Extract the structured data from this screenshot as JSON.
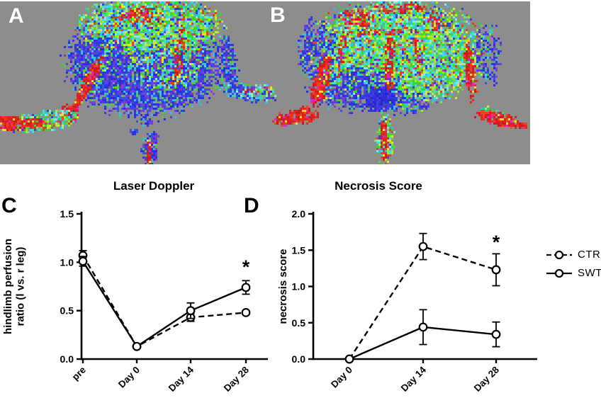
{
  "panels": {
    "a": "A",
    "b": "B",
    "c": "C",
    "d": "D"
  },
  "legend": {
    "position": "right of panel D",
    "items": [
      {
        "label": "CTR",
        "line": "dashed",
        "marker": "open-circle"
      },
      {
        "label": "SWT",
        "line": "solid",
        "marker": "open-circle"
      }
    ]
  },
  "chart_data": [
    {
      "panel": "C",
      "type": "line",
      "title": "Laser Doppler",
      "ylabel": "hindlimb perfusion ratio (l vs. r leg)",
      "ylabel_lines": [
        "hindlimb perfusion",
        "ratio (l vs. r leg)"
      ],
      "xlabel": "",
      "categories": [
        "pre",
        "Day 0",
        "Day 14",
        "Day 28"
      ],
      "ylim": [
        0.0,
        1.5
      ],
      "yticks": [
        "0.0",
        "0.5",
        "1.0",
        "1.5"
      ],
      "grid": false,
      "series": [
        {
          "name": "CTR",
          "line": "dashed",
          "values": [
            1.07,
            0.13,
            0.43,
            0.48
          ],
          "errors": [
            0.05,
            0.02,
            0.04,
            0.02
          ]
        },
        {
          "name": "SWT",
          "line": "solid",
          "values": [
            1.01,
            0.13,
            0.5,
            0.74
          ],
          "errors": [
            0.05,
            0.02,
            0.08,
            0.07
          ]
        }
      ],
      "annotations": [
        {
          "text": "*",
          "category": "Day 28",
          "value": 0.95
        }
      ]
    },
    {
      "panel": "D",
      "type": "line",
      "title": "Necrosis Score",
      "ylabel": "necrosis score",
      "ylabel_lines": [
        "necrosis score"
      ],
      "xlabel": "",
      "categories": [
        "Day 0",
        "Day 14",
        "Day 28"
      ],
      "ylim": [
        0.0,
        2.0
      ],
      "yticks": [
        "0.0",
        "0.5",
        "1.0",
        "1.5",
        "2.0"
      ],
      "grid": false,
      "series": [
        {
          "name": "CTR",
          "line": "dashed",
          "values": [
            0.0,
            1.55,
            1.23
          ],
          "errors": [
            0.0,
            0.18,
            0.22
          ]
        },
        {
          "name": "SWT",
          "line": "solid",
          "values": [
            0.0,
            0.44,
            0.34
          ],
          "errors": [
            0.0,
            0.24,
            0.17
          ]
        }
      ],
      "annotations": [
        {
          "text": "*",
          "category": "Day 28",
          "value": 1.61
        }
      ]
    }
  ],
  "colors": {
    "axis": "#000000",
    "marker_fill": "#ffffff",
    "doppler_background": "#8d8d8d"
  }
}
